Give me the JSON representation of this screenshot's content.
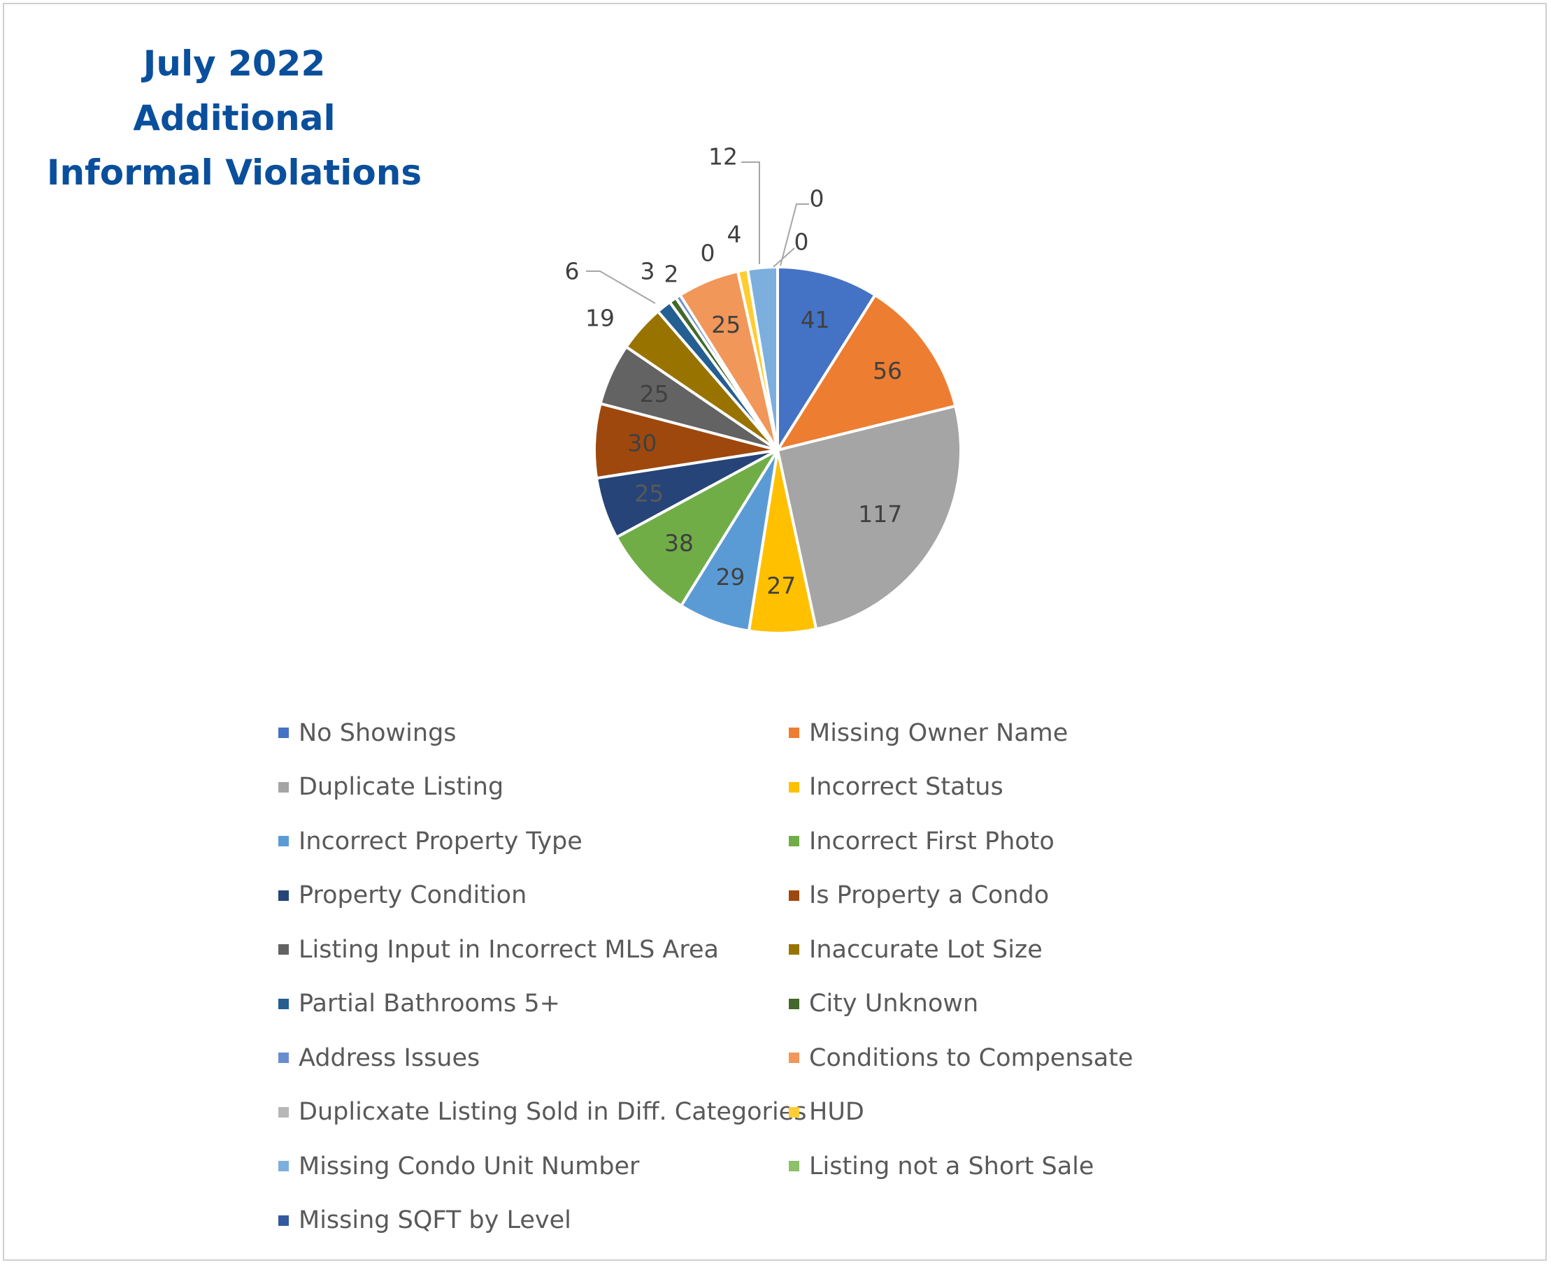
{
  "title_lines": [
    "July 2022",
    "Additional",
    "Informal Violations"
  ],
  "chart_data": {
    "type": "pie",
    "title": "July 2022 Additional Informal Violations",
    "categories": [
      "No Showings",
      "Missing Owner Name",
      "Duplicate Listing",
      "Incorrect Status",
      "Incorrect Property Type",
      "Incorrect First Photo",
      "Property Condition",
      "Is Property a Condo",
      "Listing Input in Incorrect MLS Area",
      "Inaccurate Lot Size",
      "Partial Bathrooms 5+",
      "City Unknown",
      "Address Issues",
      "Conditions to Compensate",
      "Duplicxate Listing Sold in Diff. Categories",
      "HUD",
      "Missing Condo Unit Number",
      "Listing not a Short Sale",
      "Missing SQFT by Level"
    ],
    "values": [
      41,
      56,
      117,
      27,
      29,
      38,
      25,
      30,
      25,
      19,
      6,
      3,
      2,
      25,
      0,
      4,
      12,
      0,
      0
    ],
    "colors": [
      "#4472c4",
      "#ed7d31",
      "#a5a5a5",
      "#ffc000",
      "#5b9bd5",
      "#70ad47",
      "#264478",
      "#9e480e",
      "#636363",
      "#997300",
      "#255e91",
      "#43682b",
      "#698ed0",
      "#f1975a",
      "#b7b7b7",
      "#ffcd33",
      "#7cafdd",
      "#8cc168",
      "#335aa1"
    ],
    "legend_position": "bottom"
  }
}
